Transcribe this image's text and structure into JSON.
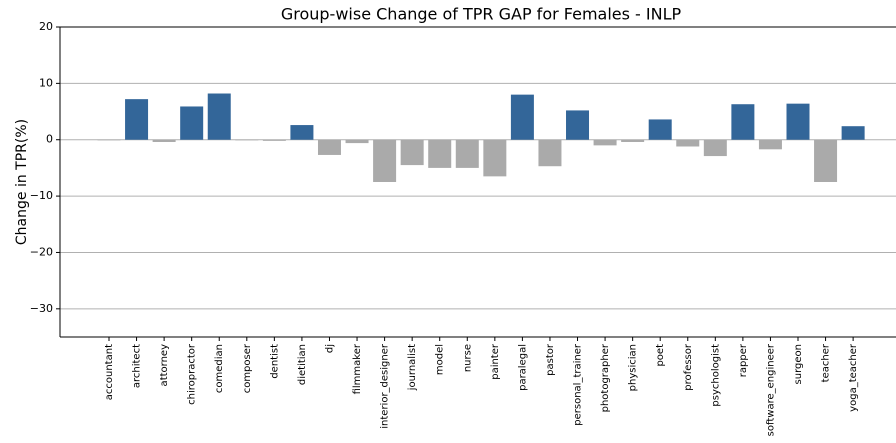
{
  "chart_data": {
    "type": "bar",
    "title": "Group-wise Change of TPR GAP for Females - INLP",
    "y_label": "Change in TPR(%)",
    "categories": [
      "accountant",
      "architect",
      "attorney",
      "chiropractor",
      "comedian",
      "composer",
      "dentist",
      "dietitian",
      "dj",
      "filmmaker",
      "interior_designer",
      "journalist",
      "model",
      "nurse",
      "painter",
      "paralegal",
      "pastor",
      "personal_trainer",
      "photographer",
      "physician",
      "poet",
      "professor",
      "psychologist",
      "rapper",
      "software_engineer",
      "surgeon",
      "teacher",
      "yoga_teacher"
    ],
    "values": [
      -0.1,
      7.2,
      -0.4,
      5.9,
      8.2,
      -0.1,
      -0.2,
      2.6,
      -2.7,
      -0.6,
      -7.5,
      -4.5,
      -5.0,
      -5.0,
      -6.5,
      8.0,
      -4.7,
      5.2,
      -1.0,
      -0.4,
      3.6,
      -1.2,
      -2.9,
      6.3,
      -1.7,
      6.4,
      -7.5,
      2.4
    ],
    "positive_color": "#336699",
    "negative_color": "#aaaaaa",
    "ylim": [
      -35,
      20
    ],
    "yticks": [
      {
        "value": -30,
        "label": "−30"
      },
      {
        "value": -20,
        "label": "−20"
      },
      {
        "value": -10,
        "label": "−10"
      },
      0,
      10,
      20
    ],
    "grid": true
  }
}
